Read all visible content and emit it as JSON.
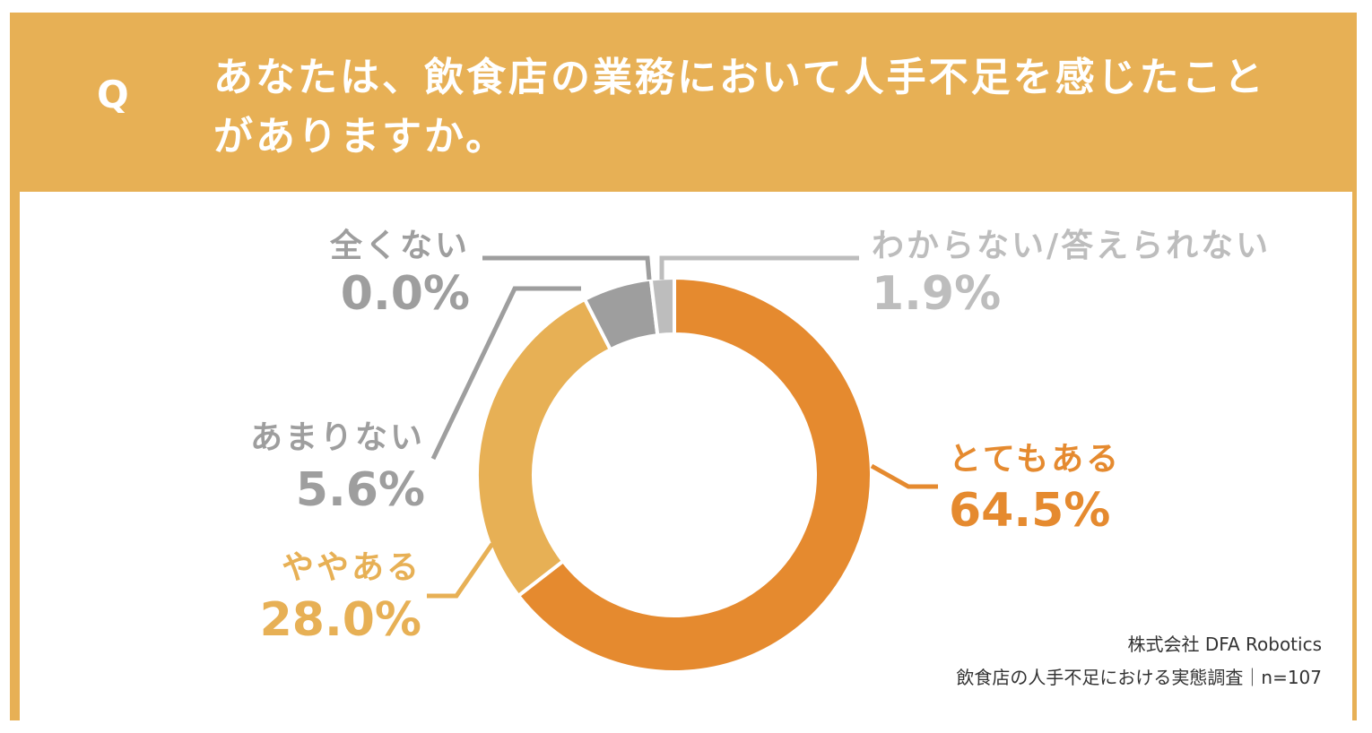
{
  "header": {
    "q_mark": "Q",
    "question_line1": "あなたは、飲食店の業務において人手不足を感じたこと",
    "question_line2": "がありますか。"
  },
  "colors": {
    "frame": "#e7b055",
    "very_much": "#e58a2f",
    "somewhat": "#e7b055",
    "not_much": "#9e9e9e",
    "dont_know": "#bdbdbd",
    "not_at_all": "#9e9e9e"
  },
  "chart_data": {
    "type": "pie",
    "categories": [
      "とてもある",
      "ややある",
      "あまりない",
      "全くない",
      "わからない/答えられない"
    ],
    "values": [
      64.5,
      28.0,
      5.6,
      0.0,
      1.9
    ],
    "value_labels": [
      "64.5%",
      "28.0%",
      "5.6%",
      "0.0%",
      "1.9%"
    ]
  },
  "credit": {
    "line1": "株式会社 DFA Robotics",
    "line2": "飲食店の人手不足における実態調査｜n=107"
  }
}
